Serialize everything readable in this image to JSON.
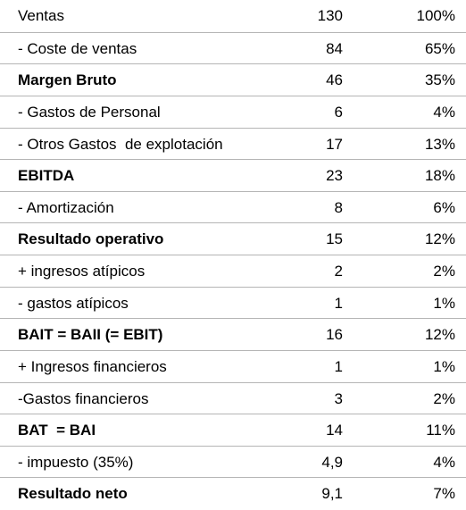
{
  "table": {
    "rows": [
      {
        "cells": [
          "Ventas",
          "130",
          "100%"
        ],
        "bold": false
      },
      {
        "cells": [
          "- Coste de ventas",
          "84",
          "65%"
        ],
        "bold": false
      },
      {
        "cells": [
          "Margen Bruto",
          "46",
          "35%"
        ],
        "bold": true
      },
      {
        "cells": [
          "- Gastos de Personal",
          "6",
          "4%"
        ],
        "bold": false
      },
      {
        "cells": [
          "- Otros Gastos  de explotación",
          "17",
          "13%"
        ],
        "bold": false
      },
      {
        "cells": [
          "EBITDA",
          "23",
          "18%"
        ],
        "bold": true
      },
      {
        "cells": [
          "- Amortización",
          "8",
          "6%"
        ],
        "bold": false
      },
      {
        "cells": [
          "Resultado operativo",
          "15",
          "12%"
        ],
        "bold": true
      },
      {
        "cells": [
          "+ ingresos atípicos",
          "2",
          "2%"
        ],
        "bold": false
      },
      {
        "cells": [
          "- gastos atípicos",
          "1",
          "1%"
        ],
        "bold": false
      },
      {
        "cells": [
          "BAIT = BAII (= EBIT)",
          "16",
          "12%"
        ],
        "bold": true
      },
      {
        "cells": [
          "+ Ingresos financieros",
          "1",
          "1%"
        ],
        "bold": false
      },
      {
        "cells": [
          "-Gastos financieros",
          "3",
          "2%"
        ],
        "bold": false
      },
      {
        "cells": [
          "BAT  = BAI",
          "14",
          "11%"
        ],
        "bold": true
      },
      {
        "cells": [
          "- impuesto (35%)",
          "4,9",
          "4%"
        ],
        "bold": false
      },
      {
        "cells": [
          "Resultado neto",
          "9,1",
          "7%"
        ],
        "bold": true
      }
    ]
  }
}
